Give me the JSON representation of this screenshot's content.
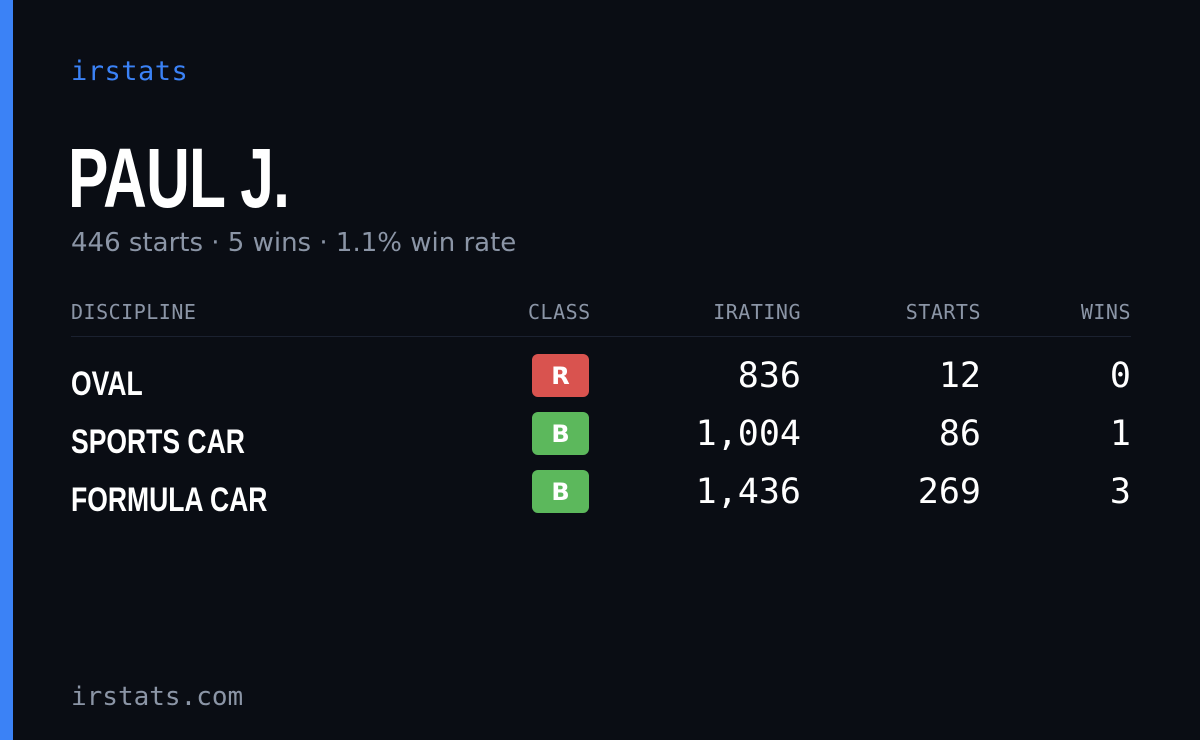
{
  "brand": "irstats",
  "driver": {
    "name": "PAUL J.",
    "summary": "446 starts · 5 wins · 1.1% win rate"
  },
  "table": {
    "headers": {
      "discipline": "DISCIPLINE",
      "class": "CLASS",
      "irating": "IRATING",
      "starts": "STARTS",
      "wins": "WINS"
    },
    "rows": [
      {
        "discipline": "OVAL",
        "class": "R",
        "class_color": "#d9534f",
        "irating": "836",
        "starts": "12",
        "wins": "0"
      },
      {
        "discipline": "SPORTS CAR",
        "class": "B",
        "class_color": "#5cb85c",
        "irating": "1,004",
        "starts": "86",
        "wins": "1"
      },
      {
        "discipline": "FORMULA CAR",
        "class": "B",
        "class_color": "#5cb85c",
        "irating": "1,436",
        "starts": "269",
        "wins": "3"
      }
    ]
  },
  "footer": {
    "site": "irstats.com"
  },
  "colors": {
    "background": "#0a0d14",
    "accent": "#3b82f6",
    "muted_text": "#8b95a6"
  }
}
